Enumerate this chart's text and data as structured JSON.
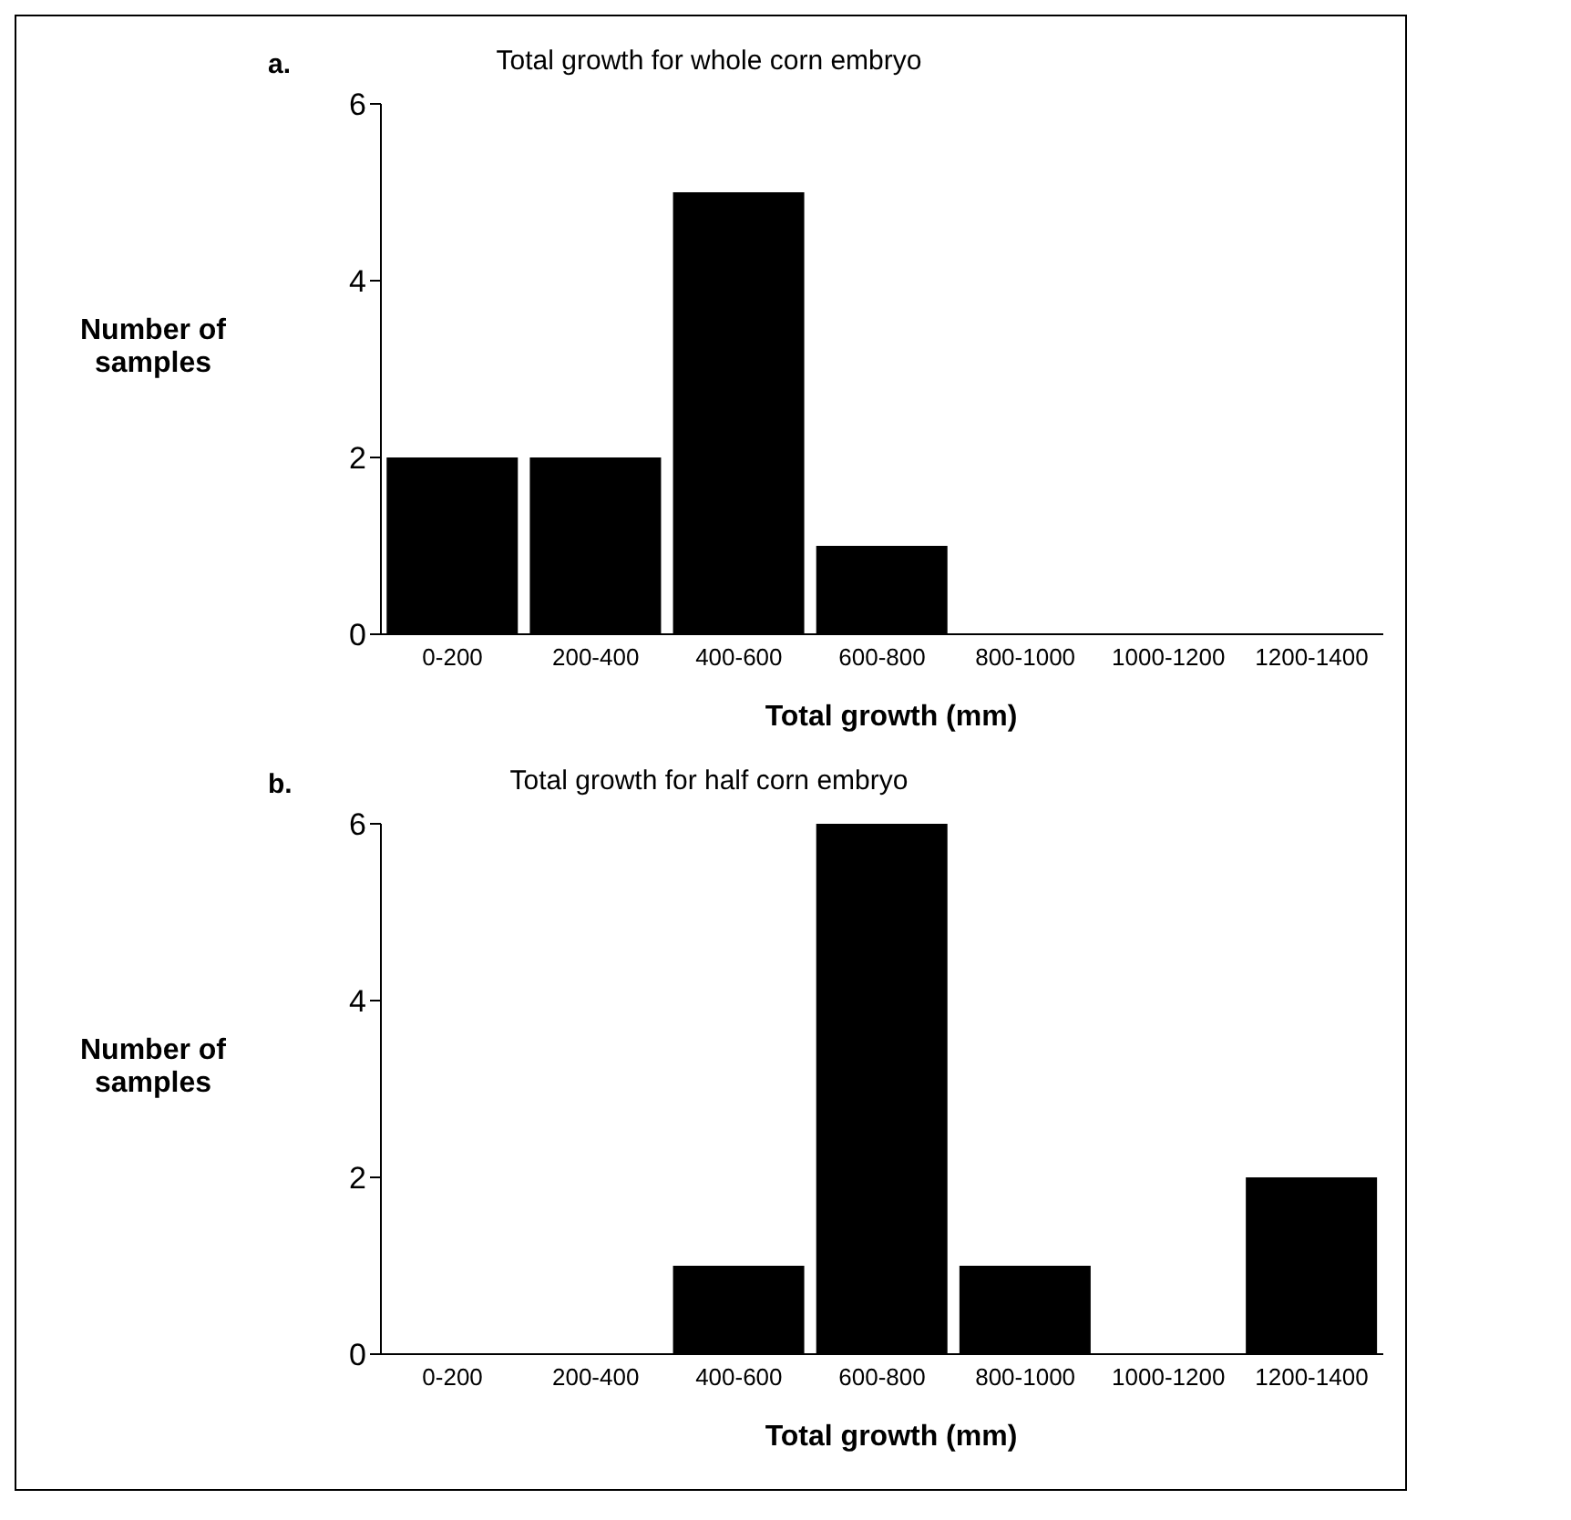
{
  "chart_data": [
    {
      "type": "bar",
      "title": "Total growth for whole corn embryo",
      "xlabel": "Total growth (mm)",
      "ylabel": "Number of samples",
      "annotations": [
        "a."
      ],
      "categories": [
        "0-200",
        "200-400",
        "400-600",
        "600-800",
        "800-1000",
        "1000-1200",
        "1200-1400"
      ],
      "values": [
        2,
        2,
        5,
        1,
        0,
        0,
        0
      ],
      "color": "#000000",
      "ylim": [
        0,
        6
      ],
      "yticks": [
        0,
        2,
        4,
        6
      ]
    },
    {
      "type": "bar",
      "title": "Total growth for half corn embryo",
      "xlabel": "Total growth (mm)",
      "ylabel": "Number of samples",
      "annotations": [
        "b."
      ],
      "categories": [
        "0-200",
        "200-400",
        "400-600",
        "600-800",
        "800-1000",
        "1000-1200",
        "1200-1400"
      ],
      "values": [
        0,
        0,
        1,
        6,
        1,
        0,
        2
      ],
      "color": "#000000",
      "ylim": [
        0,
        6
      ],
      "yticks": [
        0,
        2,
        4,
        6
      ]
    }
  ]
}
